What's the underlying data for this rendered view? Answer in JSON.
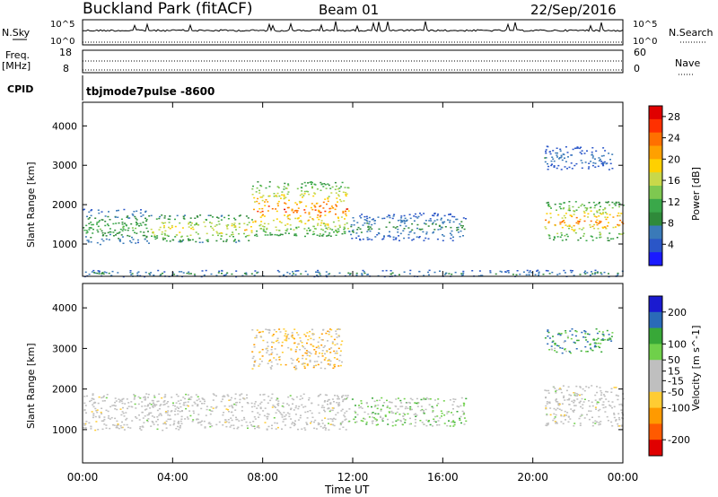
{
  "header": {
    "site": "Buckland Park (fitACF)",
    "beam": "Beam 01",
    "date": "22/Sep/2016"
  },
  "strips": {
    "nsky_label": "N.Sky",
    "nsky_top": "10^5",
    "nsky_bottom": "10^0",
    "nsearch_label": "N.Search",
    "nsearch_top": "10^5",
    "nsearch_bottom": "10^0",
    "freq_label": "Freq.",
    "freq_unit": "[MHz]",
    "freq_top": "18",
    "freq_bottom": "8",
    "nave_label": "Nave",
    "nave_top": "60",
    "nave_bottom": "0",
    "cpid_label": "CPID",
    "cpid_value": "tbjmode7pulse  -8600"
  },
  "colors": {
    "power_scale": [
      "#1a1aff",
      "#2a56c8",
      "#3a7ab8",
      "#2f8a3a",
      "#3aa84a",
      "#7ec850",
      "#c8d84a",
      "#ffd000",
      "#ffa000",
      "#ff7000",
      "#ff3000",
      "#e00000"
    ],
    "velocity_scale": [
      "#e00000",
      "#ff5a00",
      "#ff9a00",
      "#ffcc33",
      "#bfbfbf",
      "#bfbfbf",
      "#6fd04a",
      "#38a838",
      "#2a6ab8",
      "#1a1ad0"
    ],
    "background": "#ffffff",
    "ground_scatter": "#bfbfbf"
  },
  "chart_data": [
    {
      "type": "heatmap",
      "title": "",
      "xlabel": "Time UT",
      "ylabel": "Slant Range [km]",
      "x_ticks": [
        "00:00",
        "04:00",
        "08:00",
        "12:00",
        "16:00",
        "20:00",
        "00:00"
      ],
      "xlim": [
        0,
        24
      ],
      "ylim": [
        180,
        4600
      ],
      "y_ticks": [
        1000,
        2000,
        3000,
        4000
      ],
      "colorbar": {
        "label": "Power [dB]",
        "ticks": [
          4,
          8,
          12,
          16,
          20,
          24,
          28
        ],
        "range": [
          0,
          30
        ]
      },
      "echo_regions": [
        {
          "t": [
            0,
            3
          ],
          "range_km": [
            1000,
            1900
          ],
          "peak_db": 14
        },
        {
          "t": [
            3,
            7.5
          ],
          "range_km": [
            1050,
            1750
          ],
          "peak_db": 22
        },
        {
          "t": [
            7.5,
            11.8
          ],
          "range_km": [
            1200,
            2600
          ],
          "peak_db": 28
        },
        {
          "t": [
            11.8,
            17
          ],
          "range_km": [
            1100,
            1800
          ],
          "peak_db": 10
        },
        {
          "t": [
            20.5,
            24
          ],
          "range_km": [
            1100,
            2100
          ],
          "peak_db": 26
        },
        {
          "t": [
            20.5,
            23.5
          ],
          "range_km": [
            2900,
            3500
          ],
          "peak_db": 8
        },
        {
          "t": [
            0,
            24
          ],
          "range_km": [
            180,
            350
          ],
          "peak_db": 10
        }
      ]
    },
    {
      "type": "heatmap",
      "title": "",
      "xlabel": "Time UT",
      "ylabel": "Slant Range [km]",
      "x_ticks": [
        "00:00",
        "04:00",
        "08:00",
        "12:00",
        "16:00",
        "20:00",
        "00:00"
      ],
      "xlim": [
        0,
        24
      ],
      "ylim": [
        180,
        4600
      ],
      "y_ticks": [
        1000,
        2000,
        3000,
        4000
      ],
      "colorbar": {
        "label": "Velocity [m s^-1]",
        "ticks": [
          200,
          100,
          50,
          15,
          -15,
          -50,
          -100,
          -200
        ],
        "range": [
          -250,
          250
        ]
      },
      "echo_regions": [
        {
          "t": [
            0,
            11.8
          ],
          "range_km": [
            1000,
            1900
          ],
          "velocity": 0,
          "ground_scatter": true
        },
        {
          "t": [
            11.8,
            17
          ],
          "range_km": [
            1100,
            1800
          ],
          "velocity": 40
        },
        {
          "t": [
            20.5,
            24
          ],
          "range_km": [
            1100,
            2100
          ],
          "velocity": 0,
          "ground_scatter": true
        },
        {
          "t": [
            7.5,
            11.5
          ],
          "range_km": [
            2500,
            3500
          ],
          "velocity": -60
        },
        {
          "t": [
            20.5,
            23.5
          ],
          "range_km": [
            2900,
            3500
          ],
          "velocity": 120
        }
      ]
    }
  ]
}
